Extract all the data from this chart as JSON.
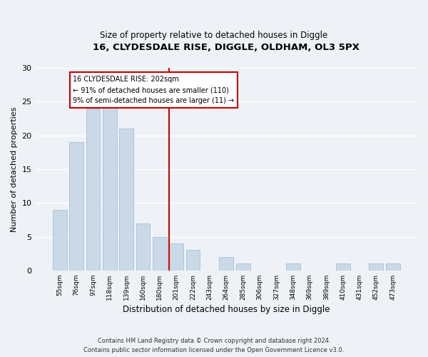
{
  "title1": "16, CLYDESDALE RISE, DIGGLE, OLDHAM, OL3 5PX",
  "title2": "Size of property relative to detached houses in Diggle",
  "xlabel": "Distribution of detached houses by size in Diggle",
  "ylabel": "Number of detached properties",
  "categories": [
    "55sqm",
    "76sqm",
    "97sqm",
    "118sqm",
    "139sqm",
    "160sqm",
    "180sqm",
    "201sqm",
    "222sqm",
    "243sqm",
    "264sqm",
    "285sqm",
    "306sqm",
    "327sqm",
    "348sqm",
    "369sqm",
    "389sqm",
    "410sqm",
    "431sqm",
    "452sqm",
    "473sqm"
  ],
  "values": [
    9,
    19,
    24,
    25,
    21,
    7,
    5,
    4,
    3,
    0,
    2,
    1,
    0,
    0,
    1,
    0,
    0,
    1,
    0,
    1,
    1
  ],
  "bar_color": "#c9d9e8",
  "bar_edge_color": "#a8bfd0",
  "property_line_index": 7,
  "annotation_line1": "16 CLYDESDALE RISE: 202sqm",
  "annotation_line2": "← 91% of detached houses are smaller (110)",
  "annotation_line3": "9% of semi-detached houses are larger (11) →",
  "annotation_box_color": "#ffffff",
  "annotation_box_edge_color": "#cc0000",
  "red_line_color": "#cc0000",
  "footer1": "Contains HM Land Registry data © Crown copyright and database right 2024.",
  "footer2": "Contains public sector information licensed under the Open Government Licence v3.0.",
  "ylim": [
    0,
    30
  ],
  "yticks": [
    0,
    5,
    10,
    15,
    20,
    25,
    30
  ],
  "background_color": "#eef2f7",
  "grid_color": "#ffffff"
}
